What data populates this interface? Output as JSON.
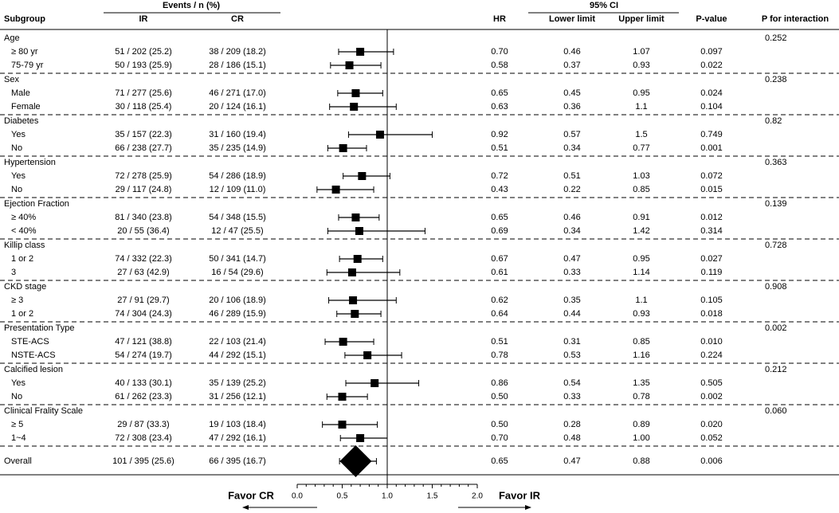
{
  "chart_data": {
    "type": "forest",
    "columns": {
      "subgroup": "Subgroup",
      "events": "Events / n (%)",
      "ir": "IR",
      "cr": "CR",
      "hr": "HR",
      "ci": "95% CI",
      "lower": "Lower limit",
      "upper": "Upper limit",
      "p": "P-value",
      "p_interaction": "P for interaction"
    },
    "groups": [
      {
        "name": "Age",
        "p_interaction": "0.252",
        "rows": [
          {
            "label": "≥ 80 yr",
            "ir": "51 / 202 (25.2)",
            "cr": "38 / 209 (18.2)",
            "hr": {
              "value": 0.7,
              "label": "0.70"
            },
            "lower": 0.46,
            "upper": 1.07,
            "p": "0.097"
          },
          {
            "label": "75-79 yr",
            "ir": "50 / 193 (25.9)",
            "cr": "28 / 186 (15.1)",
            "hr": 0.58,
            "lower": 0.37,
            "upper": 0.93,
            "p": "0.022"
          }
        ]
      },
      {
        "name": "Sex",
        "p_interaction": "0.238",
        "rows": [
          {
            "label": "Male",
            "ir": "71 / 277 (25.6)",
            "cr": "46 / 271 (17.0)",
            "hr": 0.65,
            "lower": 0.45,
            "upper": 0.95,
            "p": "0.024"
          },
          {
            "label": "Female",
            "ir": "30 / 118 (25.4)",
            "cr": "20 / 124 (16.1)",
            "hr": 0.63,
            "lower": 0.36,
            "upper": 1.1,
            "p": "0.104"
          }
        ]
      },
      {
        "name": "Diabetes",
        "p_interaction": "0.82",
        "rows": [
          {
            "label": "Yes",
            "ir": "35 / 157 (22.3)",
            "cr": "31 / 160 (19.4)",
            "hr": 0.92,
            "lower": 0.57,
            "upper": 1.5,
            "p": "0.749"
          },
          {
            "label": "No",
            "ir": "66 / 238 (27.7)",
            "cr": "35 / 235 (14.9)",
            "hr": 0.51,
            "lower": 0.34,
            "upper": 0.77,
            "p": "0.001"
          }
        ]
      },
      {
        "name": "Hypertension",
        "p_interaction": "0.363",
        "rows": [
          {
            "label": "Yes",
            "ir": "72 / 278 (25.9)",
            "cr": "54 / 286 (18.9)",
            "hr": 0.72,
            "lower": 0.51,
            "upper": 1.03,
            "p": "0.072"
          },
          {
            "label": "No",
            "ir": "29 / 117 (24.8)",
            "cr": "12 / 109 (11.0)",
            "hr": 0.43,
            "lower": 0.22,
            "upper": 0.85,
            "p": "0.015"
          }
        ]
      },
      {
        "name": "Ejection Fraction",
        "p_interaction": "0.139",
        "rows": [
          {
            "label": "≥ 40%",
            "ir": "81 / 340 (23.8)",
            "cr": "54 / 348 (15.5)",
            "hr": 0.65,
            "lower": 0.46,
            "upper": 0.91,
            "p": "0.012"
          },
          {
            "label": "< 40%",
            "ir": "20 / 55 (36.4)",
            "cr": "12 / 47 (25.5)",
            "hr": 0.69,
            "lower": 0.34,
            "upper": 1.42,
            "p": "0.314"
          }
        ]
      },
      {
        "name": "Killip class",
        "p_interaction": "0.728",
        "rows": [
          {
            "label": "1 or 2",
            "ir": "74 / 332 (22.3)",
            "cr": "50 / 341 (14.7)",
            "hr": 0.67,
            "lower": 0.47,
            "upper": 0.95,
            "p": "0.027"
          },
          {
            "label": "3",
            "ir": "27 / 63 (42.9)",
            "cr": "16 / 54 (29.6)",
            "hr": 0.61,
            "lower": 0.33,
            "upper": 1.14,
            "p": "0.119"
          }
        ]
      },
      {
        "name": "CKD stage",
        "p_interaction": "0.908",
        "rows": [
          {
            "label": "≥ 3",
            "ir": "27 / 91 (29.7)",
            "cr": "20 / 106 (18.9)",
            "hr": 0.62,
            "lower": 0.35,
            "upper": 1.1,
            "p": "0.105"
          },
          {
            "label": "1 or 2",
            "ir": "74 / 304 (24.3)",
            "cr": "46 / 289 (15.9)",
            "hr": 0.64,
            "lower": 0.44,
            "upper": 0.93,
            "p": "0.018"
          }
        ]
      },
      {
        "name": "Presentation Type",
        "p_interaction": "0.002",
        "rows": [
          {
            "label": "STE-ACS",
            "ir": "47 / 121 (38.8)",
            "cr": "22 / 103 (21.4)",
            "hr": 0.51,
            "lower": 0.31,
            "upper": 0.85,
            "p": "0.010"
          },
          {
            "label": "NSTE-ACS",
            "ir": "54 / 274 (19.7)",
            "cr": "44 / 292 (15.1)",
            "hr": 0.78,
            "lower": 0.53,
            "upper": 1.16,
            "p": "0.224"
          }
        ]
      },
      {
        "name": "Calcified lesion",
        "p_interaction": "0.212",
        "rows": [
          {
            "label": "Yes",
            "ir": "40 / 133 (30.1)",
            "cr": "35 / 139 (25.2)",
            "hr": 0.86,
            "lower": 0.54,
            "upper": 1.35,
            "p": "0.505"
          },
          {
            "label": "No",
            "ir": "61 / 262 (23.3)",
            "cr": "31 / 256 (12.1)",
            "hr": {
              "value": 0.5,
              "label": "0.50"
            },
            "lower": 0.33,
            "upper": 0.78,
            "p": "0.002"
          }
        ]
      },
      {
        "name": "Clinical Frality Scale",
        "p_interaction": "0.060",
        "rows": [
          {
            "label": "≥ 5",
            "ir": "29 / 87 (33.3)",
            "cr": "19 / 103 (18.4)",
            "hr": {
              "value": 0.5,
              "label": "0.50"
            },
            "lower": 0.28,
            "upper": 0.89,
            "p": "0.020"
          },
          {
            "label": "1~4",
            "ir": "72 / 308 (23.4)",
            "cr": "47 / 292 (16.1)",
            "hr": {
              "value": 0.7,
              "label": "0.70"
            },
            "lower": 0.48,
            "upper": {
              "value": 1,
              "label": "1.00"
            },
            "p": "0.052"
          }
        ]
      }
    ],
    "overall": {
      "label": "Overall",
      "ir": "101 / 395 (25.6)",
      "cr": "66 / 395 (16.7)",
      "hr": 0.65,
      "lower": 0.47,
      "upper": 0.88,
      "p": "0.006"
    },
    "xlim": [
      0,
      2
    ],
    "xticks": [
      {
        "value": 0,
        "label": "0.0"
      },
      0.5,
      {
        "value": 1,
        "label": "1.0"
      },
      1.5,
      {
        "value": 2,
        "label": "2.0"
      }
    ],
    "xminorticks": [
      0.1,
      0.2,
      0.3,
      0.4,
      0.6,
      0.7,
      0.8,
      0.9,
      1.1,
      1.2,
      1.3,
      1.4,
      1.6,
      1.7,
      1.8,
      1.9
    ],
    "ref_line": 1,
    "favor_left": "Favor CR",
    "favor_right": "Favor IR",
    "color": "#000000"
  }
}
